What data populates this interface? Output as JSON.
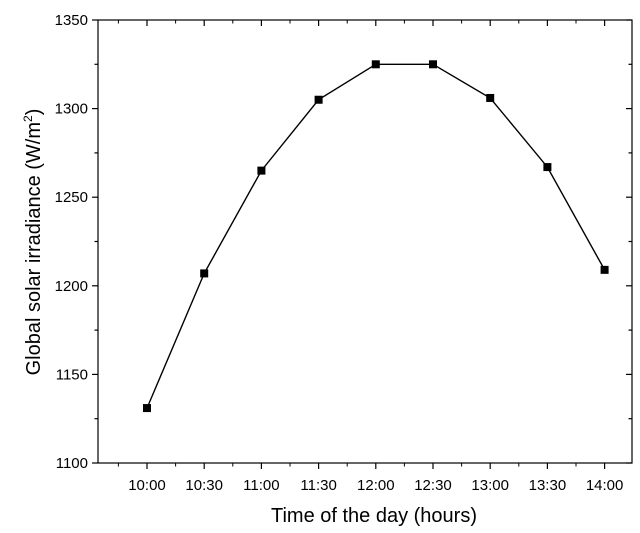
{
  "chart_data": {
    "type": "line",
    "title": "",
    "xlabel": "Time of the day (hours)",
    "ylabel_main": "Global solar irradiance (W/m",
    "ylabel_sup": "2",
    "ylabel_close": ")",
    "x": [
      "10:00",
      "10:30",
      "11:00",
      "11:30",
      "12:00",
      "12:30",
      "13:00",
      "13:30",
      "14:00"
    ],
    "y": [
      1131,
      1207,
      1265,
      1305,
      1325,
      1325,
      1306,
      1267,
      1209
    ],
    "ylim": [
      1100,
      1350
    ],
    "yticks": [
      "1100",
      "1150",
      "1200",
      "1250",
      "1300",
      "1350"
    ],
    "marker": "square",
    "line_color": "#000000",
    "marker_color": "#000000",
    "grid": false,
    "legend": "none"
  }
}
